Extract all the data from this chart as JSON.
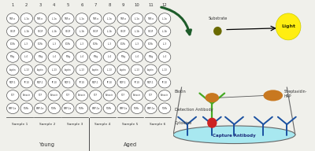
{
  "col_labels": [
    "1",
    "2",
    "3",
    "4",
    "5",
    "6",
    "7",
    "8",
    "9",
    "10",
    "11",
    "12"
  ],
  "row_labels_odd": [
    "TNF-a",
    "VEGF",
    "FGFb",
    "IFNg",
    "Leptin",
    "MCP-1",
    "SCF",
    "BMP-1a"
  ],
  "row_labels_even": [
    "IL-1a",
    "IL-1b",
    "IL-3",
    "IL-4",
    "IL-13",
    "IP-10",
    "Eotaxin",
    "TGFb"
  ],
  "sample_labels": [
    "Sample 1",
    "Sample 2",
    "Sample 3",
    "Sample 4",
    "Sample 5",
    "Sample 6"
  ],
  "group_young": "Young",
  "group_aged": "Aged",
  "bg_color": "#f0f0eb",
  "circle_edge": "#555555",
  "circle_face": "#ffffff",
  "text_color": "#333333",
  "arrow_color": "#1e5c2a",
  "plate_bg": "#f8f8f5",
  "blue_color": "#1a50a0",
  "green_color": "#44aa22",
  "red_color": "#cc2222",
  "orange_color": "#c87820",
  "olive_color": "#6b6b00",
  "yellow_color": "#ffee11",
  "well_color": "#a8e8f0",
  "label_substrate": "Substrate",
  "label_light": "Light",
  "label_biotin": "Biotin",
  "label_strep": "Streptavidin-\nHRP",
  "label_det": "Detection Antibody",
  "label_cytokine": "Cytokine",
  "label_capture": "Capture Antibody"
}
